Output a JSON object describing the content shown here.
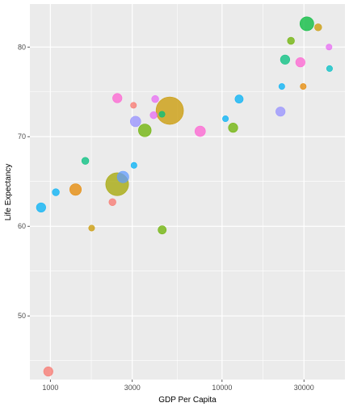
{
  "chart_data": {
    "type": "scatter",
    "title": "",
    "xlabel": "GDP Per Capita",
    "ylabel": "Life Expectancy",
    "x_scale": "log10",
    "xlim": [
      760,
      52000
    ],
    "ylim": [
      42.9,
      84.8
    ],
    "x_ticks": [
      1000,
      3000,
      10000,
      30000
    ],
    "x_tick_labels": [
      "1000",
      "3000",
      "10000",
      "30000"
    ],
    "x_minor_ticks": [
      1732,
      5477,
      17320
    ],
    "y_ticks": [
      50,
      60,
      70,
      80
    ],
    "y_tick_labels": [
      "50",
      "60",
      "70",
      "80"
    ],
    "y_minor_ticks": [
      45,
      55,
      65,
      75
    ],
    "grid": true,
    "legend": "none",
    "style": {
      "panel_background": "#ebebeb",
      "grid_color": "#ffffff",
      "point_opacity": 0.75
    },
    "points": [
      {
        "x": 973,
        "y": 43.8,
        "size": 3,
        "color": "#f8766d"
      },
      {
        "x": 883,
        "y": 62.1,
        "size": 3,
        "color": "#00b0f6"
      },
      {
        "x": 1076,
        "y": 63.8,
        "size": 2,
        "color": "#00b0f6"
      },
      {
        "x": 1402,
        "y": 64.1,
        "size": 4,
        "color": "#e58700"
      },
      {
        "x": 1598,
        "y": 67.3,
        "size": 2,
        "color": "#00bf7d"
      },
      {
        "x": 1740,
        "y": 59.8,
        "size": 1.5,
        "color": "#c99800"
      },
      {
        "x": 2300,
        "y": 62.7,
        "size": 2,
        "color": "#f8766d"
      },
      {
        "x": 2455,
        "y": 74.3,
        "size": 3,
        "color": "#fd61d1"
      },
      {
        "x": 2450,
        "y": 64.7,
        "size": 9,
        "color": "#a3a500"
      },
      {
        "x": 2650,
        "y": 65.5,
        "size": 4,
        "color": "#619cff"
      },
      {
        "x": 3050,
        "y": 73.5,
        "size": 1.5,
        "color": "#f8766d"
      },
      {
        "x": 3070,
        "y": 66.8,
        "size": 1.5,
        "color": "#00b0f6"
      },
      {
        "x": 3135,
        "y": 71.7,
        "size": 3.5,
        "color": "#9590ff"
      },
      {
        "x": 3550,
        "y": 70.7,
        "size": 4.5,
        "color": "#6bb100"
      },
      {
        "x": 3996,
        "y": 72.4,
        "size": 2,
        "color": "#e76bf3"
      },
      {
        "x": 4080,
        "y": 74.2,
        "size": 2,
        "color": "#e76bf3"
      },
      {
        "x": 4470,
        "y": 72.5,
        "size": 1.5,
        "color": "#00bf7d"
      },
      {
        "x": 4480,
        "y": 59.6,
        "size": 2.5,
        "color": "#6bb100"
      },
      {
        "x": 4960,
        "y": 72.9,
        "size": 11,
        "color": "#c99800"
      },
      {
        "x": 7460,
        "y": 70.6,
        "size": 3.5,
        "color": "#fd61d1"
      },
      {
        "x": 10470,
        "y": 72.0,
        "size": 1.5,
        "color": "#00b0f6"
      },
      {
        "x": 11600,
        "y": 71.0,
        "size": 3,
        "color": "#6bb100"
      },
      {
        "x": 12570,
        "y": 74.2,
        "size": 2.5,
        "color": "#00b0f6"
      },
      {
        "x": 22300,
        "y": 75.6,
        "size": 1.5,
        "color": "#00b0f6"
      },
      {
        "x": 21900,
        "y": 72.8,
        "size": 3,
        "color": "#9590ff"
      },
      {
        "x": 23300,
        "y": 78.6,
        "size": 3,
        "color": "#00bf7d"
      },
      {
        "x": 25200,
        "y": 80.7,
        "size": 2,
        "color": "#6bb100"
      },
      {
        "x": 28600,
        "y": 78.3,
        "size": 3,
        "color": "#fd61d1"
      },
      {
        "x": 29700,
        "y": 75.6,
        "size": 1.5,
        "color": "#e58700"
      },
      {
        "x": 31200,
        "y": 82.6,
        "size": 5,
        "color": "#00ba38"
      },
      {
        "x": 36300,
        "y": 82.2,
        "size": 2,
        "color": "#c99800"
      },
      {
        "x": 42000,
        "y": 80.0,
        "size": 1.5,
        "color": "#e76bf3"
      },
      {
        "x": 42300,
        "y": 77.6,
        "size": 1.5,
        "color": "#00bfc4"
      }
    ]
  }
}
